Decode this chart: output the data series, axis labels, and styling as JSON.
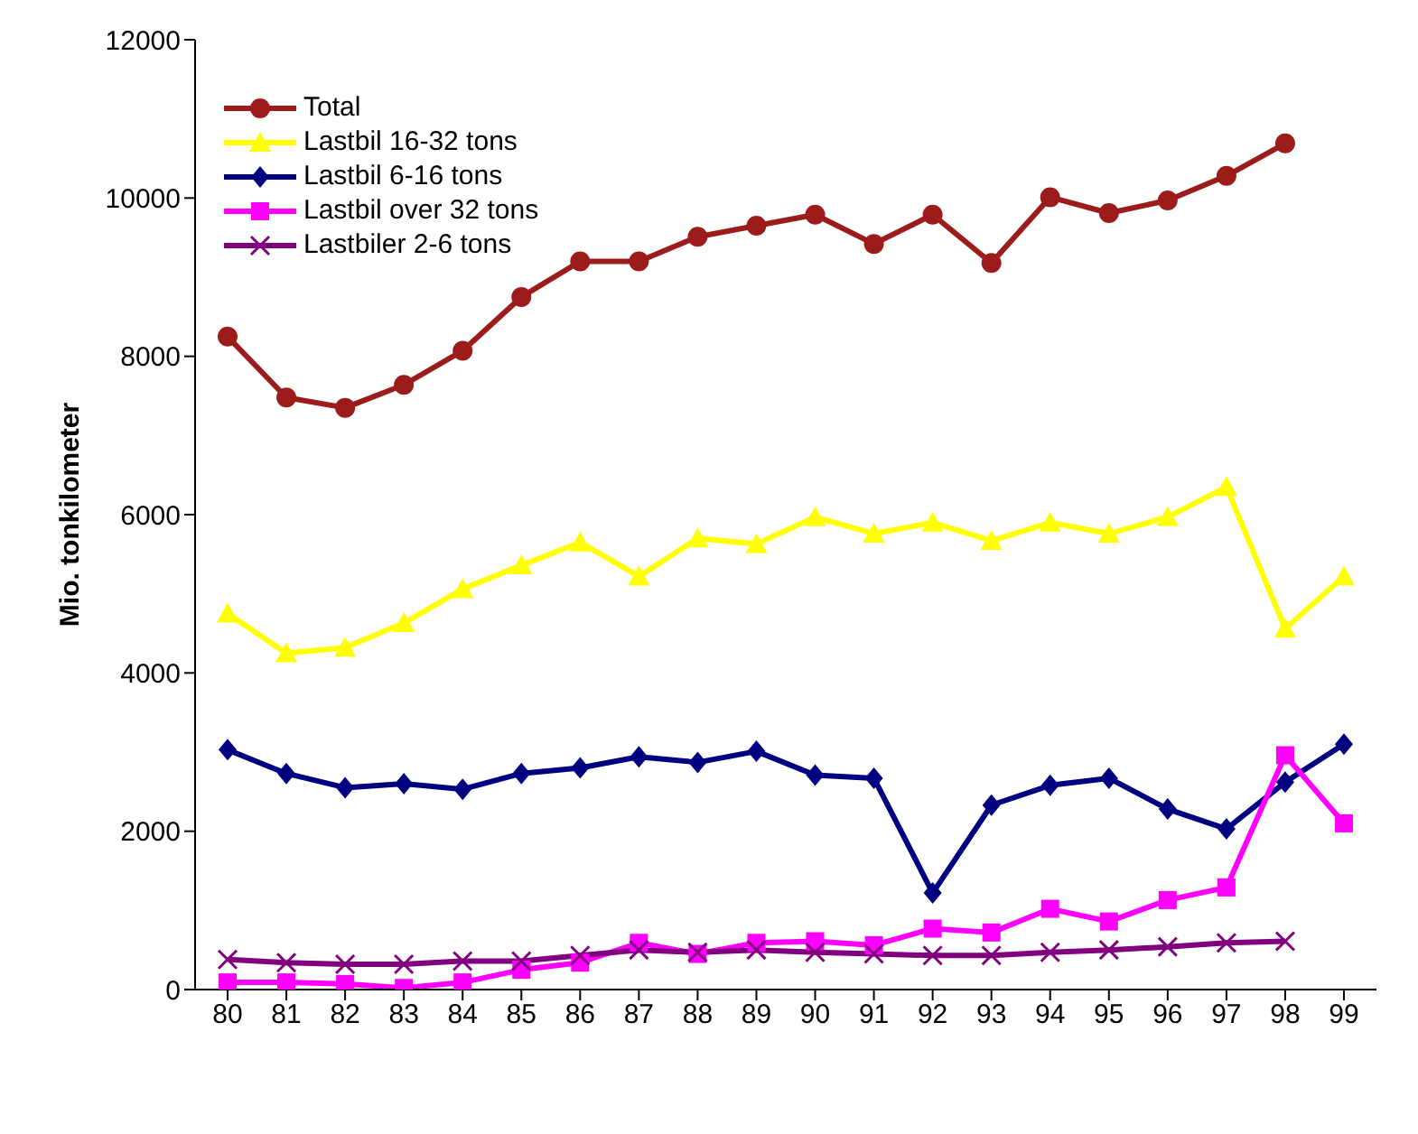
{
  "chart_data": {
    "type": "line",
    "ylabel": "Mio. tonkilometer",
    "categories": [
      "80",
      "81",
      "82",
      "83",
      "84",
      "85",
      "86",
      "87",
      "88",
      "89",
      "90",
      "91",
      "92",
      "93",
      "94",
      "95",
      "96",
      "97",
      "98",
      "99"
    ],
    "ylim": [
      0,
      12000
    ],
    "yticks": [
      0,
      2000,
      4000,
      6000,
      8000,
      10000,
      12000
    ],
    "grid": false,
    "legend": "top left",
    "line_style": "solid",
    "series": [
      {
        "name": "Total",
        "color": "#9c1c1c",
        "marker": "circle",
        "values": [
          8250,
          7480,
          7350,
          7640,
          8070,
          8750,
          9200,
          9200,
          9510,
          9650,
          9790,
          9420,
          9790,
          9180,
          10010,
          9810,
          9970,
          10280,
          10690,
          null
        ]
      },
      {
        "name": "Lastbil 16-32 tons",
        "color": "#ffff00",
        "marker": "triangle",
        "values": [
          4750,
          4250,
          4320,
          4630,
          5060,
          5360,
          5650,
          5220,
          5700,
          5630,
          5970,
          5760,
          5900,
          5670,
          5900,
          5760,
          5970,
          6350,
          4560,
          5220
        ]
      },
      {
        "name": "Lastbil 6-16 tons",
        "color": "#000080",
        "marker": "diamond",
        "values": [
          3030,
          2730,
          2550,
          2600,
          2530,
          2730,
          2800,
          2940,
          2870,
          3010,
          2710,
          2670,
          1220,
          2330,
          2580,
          2670,
          2280,
          2030,
          2620,
          3100
        ]
      },
      {
        "name": "Lastbil over 32 tons",
        "color": "#ff00ff",
        "marker": "square",
        "values": [
          90,
          90,
          70,
          20,
          90,
          250,
          340,
          590,
          450,
          590,
          610,
          560,
          770,
          720,
          1020,
          860,
          1130,
          1290,
          2960,
          2100
        ]
      },
      {
        "name": "Lastbiler 2-6 tons",
        "color": "#800080",
        "marker": "cross",
        "values": [
          380,
          340,
          320,
          320,
          360,
          360,
          430,
          500,
          470,
          500,
          470,
          450,
          430,
          430,
          470,
          500,
          540,
          590,
          610,
          null
        ]
      }
    ]
  }
}
